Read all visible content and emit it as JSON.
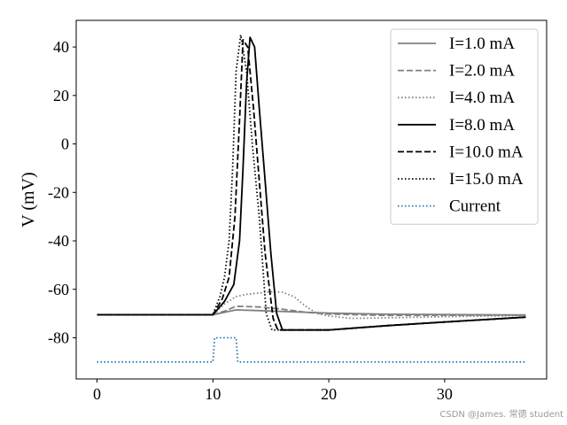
{
  "chart_data": {
    "type": "line",
    "title": "",
    "xlabel": "",
    "ylabel": "V (mV)",
    "xlim": [
      -1.8,
      38.8
    ],
    "ylim": [
      -97,
      51
    ],
    "xticks": [
      0,
      10,
      20,
      30
    ],
    "xtick_labels": [
      "0",
      "10",
      "20",
      "30"
    ],
    "yticks": [
      -80,
      -60,
      -40,
      -20,
      0,
      20,
      40
    ],
    "ytick_labels": [
      "-80",
      "-60",
      "-40",
      "-20",
      "0",
      "20",
      "40"
    ],
    "grid": false,
    "legend_position": "upper-right",
    "series": [
      {
        "name": "I=1.0 mA",
        "color": "#808080",
        "dash": "solid",
        "x": [
          0,
          10,
          11,
          12,
          14,
          20,
          25,
          37
        ],
        "y": [
          -70.5,
          -70.5,
          -69.5,
          -68.5,
          -68.8,
          -69.8,
          -70.3,
          -70.6
        ]
      },
      {
        "name": "I=2.0 mA",
        "color": "#808080",
        "dash": "dashed",
        "x": [
          0,
          10,
          11,
          12,
          14,
          16,
          18,
          20,
          25,
          37
        ],
        "y": [
          -70.5,
          -70.5,
          -69,
          -67,
          -67.3,
          -68.2,
          -69.5,
          -70.2,
          -70.8,
          -70.6
        ]
      },
      {
        "name": "I=4.0 mA",
        "color": "#808080",
        "dash": "dotted",
        "x": [
          0,
          10,
          11,
          12,
          13,
          14,
          15,
          16,
          17,
          18,
          19,
          20,
          22,
          25,
          30,
          37
        ],
        "y": [
          -70.5,
          -70.5,
          -66,
          -63,
          -62,
          -61.5,
          -61,
          -61.2,
          -63,
          -67,
          -70,
          -71,
          -72,
          -71.8,
          -71.3,
          -70.8
        ]
      },
      {
        "name": "I=8.0 mA",
        "color": "#000000",
        "dash": "solid",
        "x": [
          0,
          10,
          11,
          11.8,
          12.3,
          12.6,
          12.9,
          13.2,
          13.6,
          14,
          14.5,
          15,
          15.5,
          16,
          20,
          25,
          30,
          37
        ],
        "y": [
          -70.5,
          -70.5,
          -65,
          -58,
          -40,
          -10,
          25,
          44,
          40,
          15,
          -15,
          -45,
          -70,
          -76.8,
          -76.8,
          -75,
          -73.5,
          -71.5
        ]
      },
      {
        "name": "I=10.0 mA",
        "color": "#000000",
        "dash": "dashed",
        "x": [
          0,
          10,
          10.8,
          11.4,
          11.9,
          12.3,
          12.6,
          13,
          13.5,
          14,
          14.5,
          15.2,
          15.6,
          20,
          25,
          30,
          37
        ],
        "y": [
          -70.5,
          -70.5,
          -64,
          -55,
          -30,
          10,
          43,
          40,
          15,
          -15,
          -45,
          -72,
          -76.8,
          -76.8,
          -75,
          -73.5,
          -71.5
        ]
      },
      {
        "name": "I=15.0 mA",
        "color": "#000000",
        "dash": "dotted",
        "x": [
          0,
          10,
          10.6,
          11,
          11.4,
          11.7,
          12,
          12.4,
          12.9,
          13.4,
          14,
          14.6,
          15.1,
          20,
          25,
          30,
          37
        ],
        "y": [
          -70.5,
          -70.5,
          -63,
          -55,
          -40,
          -10,
          30,
          45,
          30,
          0,
          -30,
          -70,
          -76.8,
          -76.8,
          -75,
          -73.5,
          -71.5
        ]
      },
      {
        "name": "Current",
        "color": "#1f77b4",
        "dash": "dotted",
        "x": [
          0,
          10,
          10.15,
          12,
          12.15,
          37
        ],
        "y": [
          -90,
          -90,
          -80,
          -80,
          -90,
          -90
        ]
      }
    ]
  },
  "watermark": "CSDN @James. 常德 student"
}
